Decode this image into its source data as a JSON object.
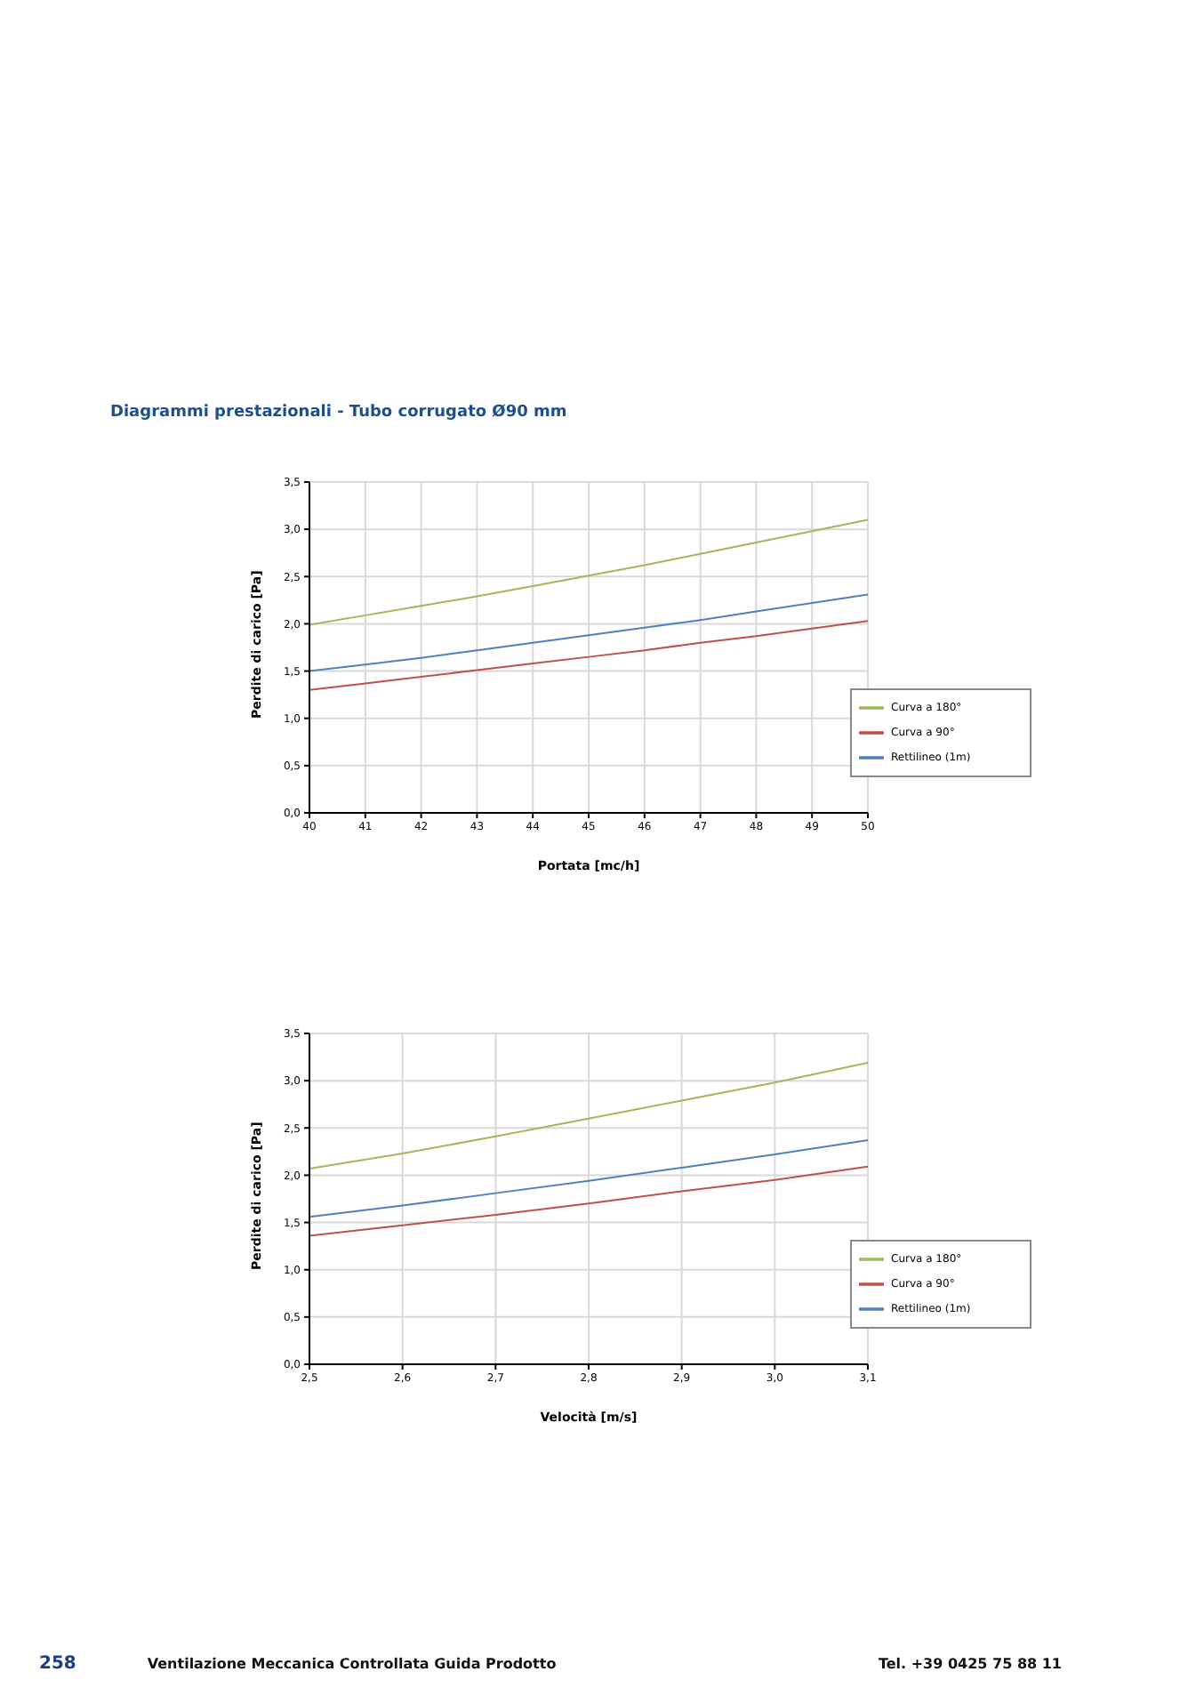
{
  "chart_data": [
    {
      "type": "line",
      "title": "Diagrammi prestazionali - Tubo corrugato Ø90 mm",
      "xlabel": "Portata [mc/h]",
      "ylabel": "Perdite di carico [Pa]",
      "x": [
        40,
        41,
        42,
        43,
        44,
        45,
        46,
        47,
        48,
        49,
        50
      ],
      "series": [
        {
          "name": "Rettilineo (1m)",
          "color": "#4f81bd",
          "values": [
            1.5,
            1.57,
            1.64,
            1.72,
            1.8,
            1.88,
            1.96,
            2.04,
            2.13,
            2.22,
            2.31
          ]
        },
        {
          "name": "Curva a 90°",
          "color": "#c0504d",
          "values": [
            1.3,
            1.37,
            1.44,
            1.51,
            1.58,
            1.65,
            1.72,
            1.8,
            1.87,
            1.95,
            2.03
          ]
        },
        {
          "name": "Curva a 180°",
          "color": "#9bbb59",
          "values": [
            1.99,
            2.09,
            2.19,
            2.29,
            2.4,
            2.51,
            2.62,
            2.74,
            2.86,
            2.98,
            3.1
          ]
        }
      ],
      "xlim": [
        40,
        50
      ],
      "xticks": [
        40,
        41,
        42,
        43,
        44,
        45,
        46,
        47,
        48,
        49,
        50
      ],
      "ylim": [
        0,
        3.5
      ],
      "yticks": [
        {
          "value": 0,
          "label": "0,0"
        },
        {
          "value": 0.5,
          "label": "0,5"
        },
        {
          "value": 1,
          "label": "1,0"
        },
        {
          "value": 1.5,
          "label": "1,5"
        },
        {
          "value": 2,
          "label": "2,0"
        },
        {
          "value": 2.5,
          "label": "2,5"
        },
        {
          "value": 3,
          "label": "3,0"
        },
        {
          "value": 3.5,
          "label": "3,5"
        }
      ],
      "grid": true,
      "legend": "bottom right",
      "marker": "none",
      "line_style": "solid"
    },
    {
      "type": "line",
      "xlabel": "Velocità [m/s]",
      "ylabel": "Perdite di carico [Pa]",
      "x": [
        2.5,
        2.6,
        2.7,
        2.8,
        2.9,
        3.0,
        3.1
      ],
      "series": [
        {
          "name": "Rettilineo (1m)",
          "color": "#4f81bd",
          "values": [
            1.56,
            1.68,
            1.81,
            1.94,
            2.08,
            2.22,
            2.37
          ]
        },
        {
          "name": "Curva a 90°",
          "color": "#c0504d",
          "values": [
            1.36,
            1.47,
            1.58,
            1.7,
            1.83,
            1.95,
            2.09
          ]
        },
        {
          "name": "Curva a 180°",
          "color": "#9bbb59",
          "values": [
            2.07,
            2.23,
            2.41,
            2.6,
            2.79,
            2.98,
            3.19
          ]
        }
      ],
      "xlim": [
        2.5,
        3.1
      ],
      "xticks": [
        {
          "value": 2.5,
          "label": "2,5"
        },
        {
          "value": 2.6,
          "label": "2,6"
        },
        {
          "value": 2.7,
          "label": "2,7"
        },
        {
          "value": 2.8,
          "label": "2,8"
        },
        {
          "value": 2.9,
          "label": "2,9"
        },
        {
          "value": 3.0,
          "label": "3,0"
        },
        {
          "value": 3.1,
          "label": "3,1"
        }
      ],
      "ylim": [
        0,
        3.5
      ],
      "yticks": [
        {
          "value": 0,
          "label": "0,0"
        },
        {
          "value": 0.5,
          "label": "0,5"
        },
        {
          "value": 1,
          "label": "1,0"
        },
        {
          "value": 1.5,
          "label": "1,5"
        },
        {
          "value": 2,
          "label": "2,0"
        },
        {
          "value": 2.5,
          "label": "2,5"
        },
        {
          "value": 3,
          "label": "3,0"
        },
        {
          "value": 3.5,
          "label": "3,5"
        }
      ],
      "grid": true,
      "legend": "bottom right",
      "marker": "none",
      "line_style": "solid",
      "annotations": [
        "258",
        "Ventilazione Meccanica Controllata Guida Prodotto",
        "Tel. +39 0425 75 88 11"
      ]
    }
  ]
}
